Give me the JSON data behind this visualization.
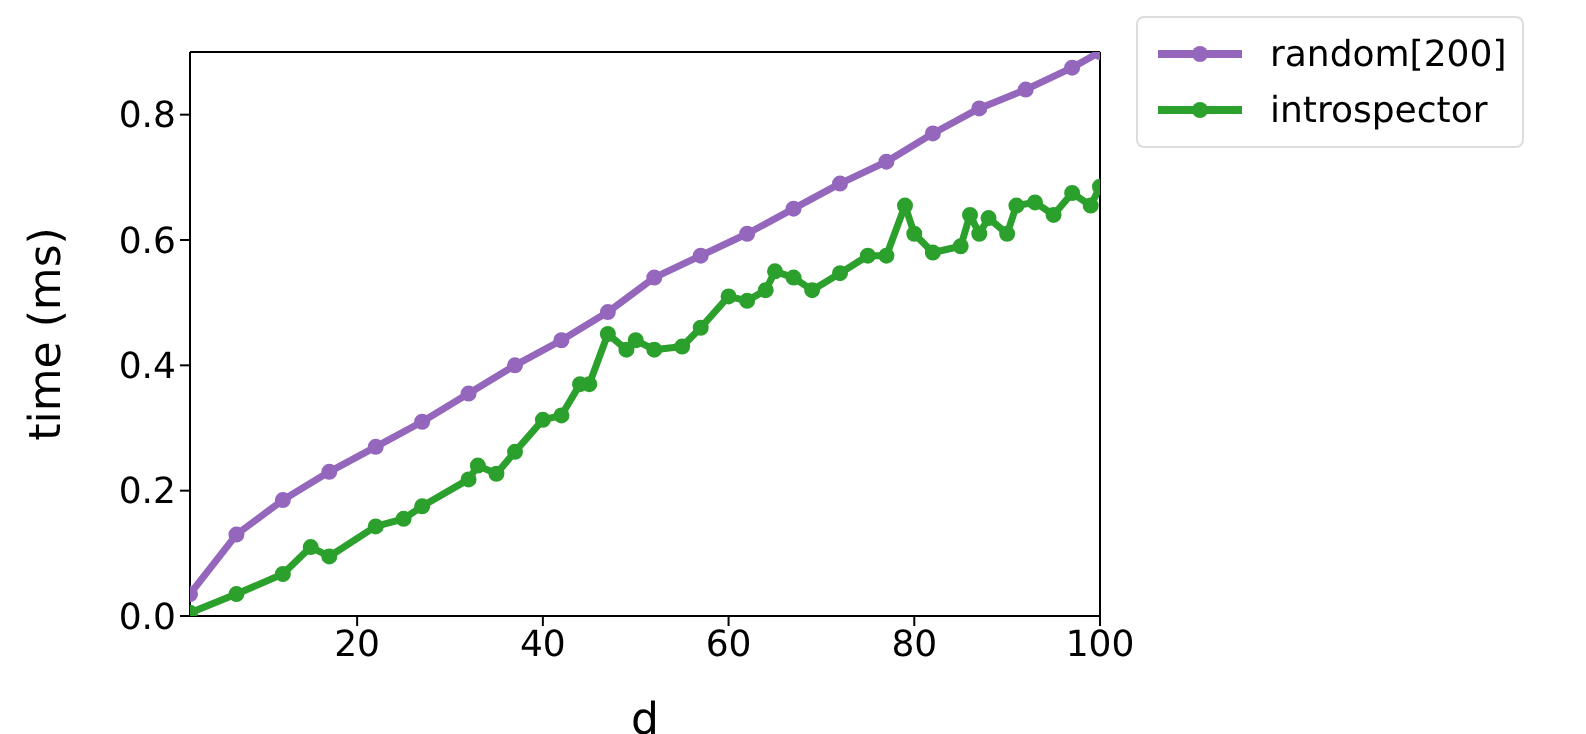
{
  "chart_data": {
    "type": "line",
    "xlabel": "d",
    "ylabel": "time (ms)",
    "xlim": [
      2,
      100
    ],
    "ylim": [
      0,
      0.9
    ],
    "xticks": [
      20,
      40,
      60,
      80,
      100
    ],
    "yticks": [
      {
        "value": 0,
        "label": "0.0"
      },
      0.2,
      0.4,
      0.6,
      0.8
    ],
    "legend": "top right",
    "marker": "circle",
    "line_style": "solid",
    "grid": false,
    "series": [
      {
        "name": "random[200]",
        "color": "#9467bd",
        "x": [
          2,
          7,
          12,
          17,
          22,
          27,
          32,
          37,
          42,
          47,
          52,
          57,
          62,
          67,
          72,
          77,
          82,
          87,
          92,
          97,
          100
        ],
        "values": [
          0.035,
          0.13,
          0.185,
          0.23,
          0.27,
          0.31,
          0.355,
          0.4,
          0.44,
          0.485,
          0.54,
          0.575,
          0.61,
          0.65,
          0.69,
          0.725,
          0.77,
          0.81,
          0.84,
          0.875,
          0.9
        ]
      },
      {
        "name": "introspector",
        "color": "#2ca02c",
        "x": [
          2,
          7,
          12,
          15,
          17,
          22,
          25,
          27,
          32,
          33,
          35,
          37,
          40,
          42,
          44,
          45,
          47,
          49,
          50,
          52,
          55,
          57,
          60,
          62,
          64,
          65,
          67,
          69,
          72,
          75,
          77,
          79,
          80,
          82,
          85,
          86,
          87,
          88,
          90,
          91,
          93,
          95,
          97,
          99,
          100
        ],
        "values": [
          0.005,
          0.035,
          0.067,
          0.11,
          0.095,
          0.143,
          0.155,
          0.175,
          0.218,
          0.24,
          0.227,
          0.262,
          0.313,
          0.32,
          0.37,
          0.37,
          0.45,
          0.425,
          0.44,
          0.425,
          0.43,
          0.46,
          0.51,
          0.503,
          0.52,
          0.55,
          0.54,
          0.52,
          0.547,
          0.575,
          0.575,
          0.655,
          0.61,
          0.58,
          0.59,
          0.64,
          0.61,
          0.635,
          0.61,
          0.655,
          0.66,
          0.64,
          0.675,
          0.655,
          0.685
        ]
      }
    ]
  }
}
